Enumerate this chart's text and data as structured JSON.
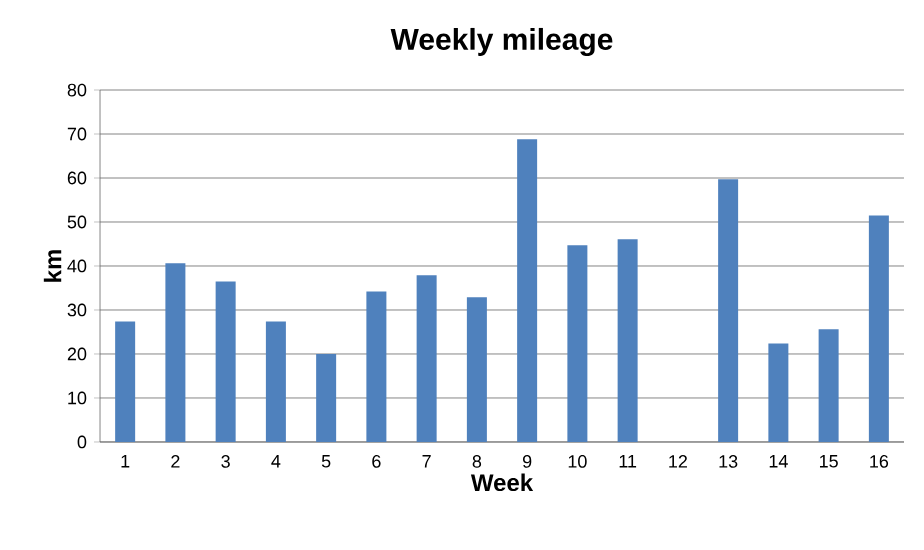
{
  "chart_data": {
    "type": "bar",
    "title": "Weekly mileage",
    "xlabel": "Week",
    "ylabel": "km",
    "categories": [
      "1",
      "2",
      "3",
      "4",
      "5",
      "6",
      "7",
      "8",
      "9",
      "10",
      "11",
      "12",
      "13",
      "14",
      "15",
      "16"
    ],
    "values": [
      27.4,
      40.6,
      36.5,
      27.4,
      20,
      34.2,
      37.9,
      32.9,
      68.8,
      44.7,
      46.1,
      0,
      59.7,
      22.4,
      25.6,
      51.5
    ],
    "color": "#4f81bd",
    "ylim": [
      0,
      80
    ],
    "yticks": [
      0,
      10,
      20,
      30,
      40,
      50,
      60,
      70,
      80
    ],
    "grid": "y"
  }
}
